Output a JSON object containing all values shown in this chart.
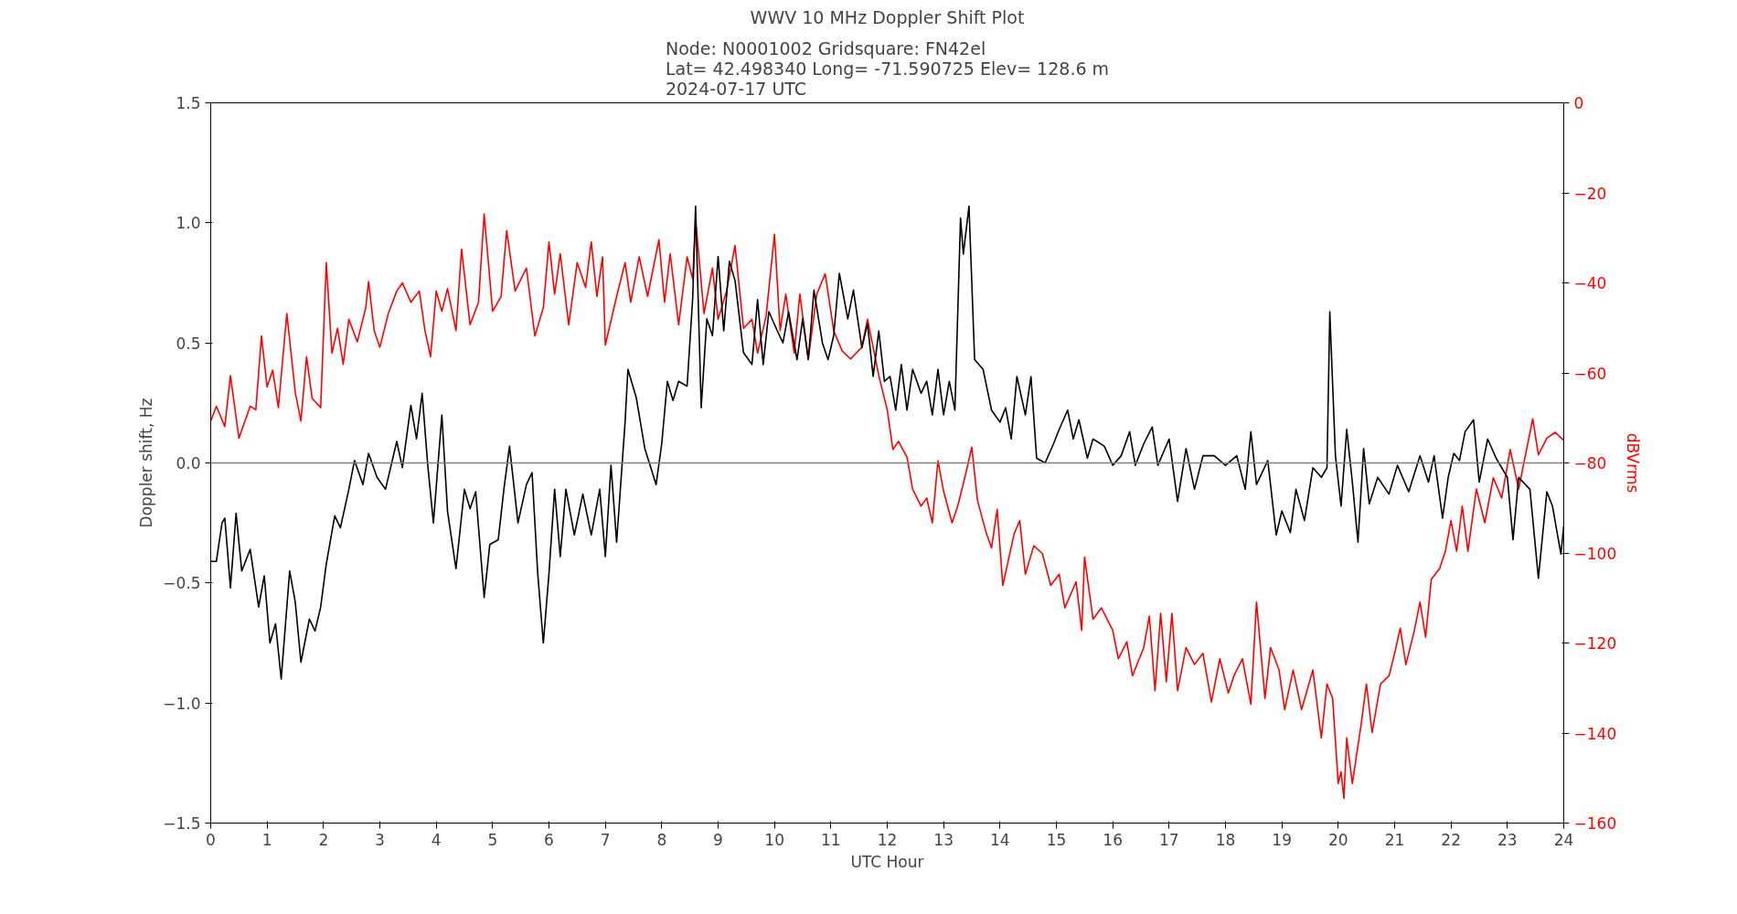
{
  "chart_data": {
    "type": "line",
    "title": "WWV 10 MHz Doppler Shift Plot",
    "subtitle": "Node: N0001002 Gridsquare: FN42el\nLat= 42.498340 Long= -71.590725 Elev= 128.6 m\n2024-07-17 UTC",
    "xlabel": "UTC Hour",
    "ylabel": "Doppler shift, Hz",
    "y2label": "dBVrms",
    "xlim": [
      0,
      24
    ],
    "xticks": [
      0,
      1,
      2,
      3,
      4,
      5,
      6,
      7,
      8,
      9,
      10,
      11,
      12,
      13,
      14,
      15,
      16,
      17,
      18,
      19,
      20,
      21,
      22,
      23,
      24
    ],
    "ylim": [
      -1.5,
      1.5
    ],
    "yticks": [
      {
        "value": -1.5,
        "label": "−1.5"
      },
      {
        "value": -1.0,
        "label": "−1.0"
      },
      {
        "value": -0.5,
        "label": "−0.5"
      },
      {
        "value": 0,
        "label": "0.0"
      },
      {
        "value": 0.5,
        "label": "0.5"
      },
      {
        "value": 1.0,
        "label": "1.0"
      },
      {
        "value": 1.5,
        "label": "1.5"
      }
    ],
    "y2lim": [
      -160,
      0
    ],
    "y2ticks": [
      {
        "value": -160,
        "label": "−160"
      },
      {
        "value": -140,
        "label": "−140"
      },
      {
        "value": -120,
        "label": "−120"
      },
      {
        "value": -100,
        "label": "−100"
      },
      {
        "value": -80,
        "label": "−80"
      },
      {
        "value": -60,
        "label": "−60"
      },
      {
        "value": -40,
        "label": "−40"
      },
      {
        "value": -20,
        "label": "−20"
      },
      {
        "value": 0,
        "label": "0"
      }
    ],
    "ref_lines": [
      {
        "axis": "y",
        "value": 0,
        "color": "#808080"
      }
    ],
    "grid": false,
    "series": [
      {
        "color": "#ff0000",
        "axis": "y2",
        "x": [
          0.0,
          0.1,
          0.25,
          0.35,
          0.5,
          0.7,
          0.8,
          0.9,
          1.0,
          1.1,
          1.2,
          1.35,
          1.5,
          1.6,
          1.7,
          1.8,
          1.95,
          2.05,
          2.15,
          2.25,
          2.35,
          2.45,
          2.6,
          2.75,
          2.8,
          2.9,
          3.0,
          3.15,
          3.3,
          3.4,
          3.55,
          3.7,
          3.8,
          3.9,
          4.0,
          4.1,
          4.2,
          4.35,
          4.45,
          4.6,
          4.75,
          4.85,
          5.0,
          5.15,
          5.25,
          5.4,
          5.6,
          5.75,
          5.9,
          6.0,
          6.1,
          6.2,
          6.35,
          6.5,
          6.65,
          6.75,
          6.85,
          6.95,
          7.0,
          7.2,
          7.35,
          7.45,
          7.6,
          7.75,
          7.95,
          8.05,
          8.15,
          8.3,
          8.45,
          8.55,
          8.6,
          8.75,
          8.9,
          9.0,
          9.15,
          9.3,
          9.45,
          9.6,
          9.7,
          9.85,
          10.0,
          10.1,
          10.2,
          10.35,
          10.45,
          10.6,
          10.75,
          10.9,
          11.05,
          11.2,
          11.35,
          11.55,
          11.65,
          11.85,
          12.0,
          12.1,
          12.2,
          12.35,
          12.45,
          12.6,
          12.7,
          12.8,
          12.9,
          13.0,
          13.15,
          13.25,
          13.4,
          13.5,
          13.6,
          13.75,
          13.85,
          13.95,
          14.05,
          14.25,
          14.35,
          14.45,
          14.6,
          14.75,
          14.9,
          15.05,
          15.15,
          15.35,
          15.45,
          15.5,
          15.65,
          15.8,
          16.0,
          16.1,
          16.25,
          16.35,
          16.55,
          16.65,
          16.75,
          16.85,
          16.95,
          17.05,
          17.15,
          17.3,
          17.45,
          17.6,
          17.75,
          17.9,
          18.05,
          18.15,
          18.3,
          18.45,
          18.55,
          18.7,
          18.8,
          18.95,
          19.05,
          19.2,
          19.35,
          19.55,
          19.7,
          19.8,
          19.9,
          20.0,
          20.05,
          20.1,
          20.15,
          20.25,
          20.4,
          20.5,
          20.6,
          20.75,
          20.9,
          21.0,
          21.1,
          21.2,
          21.35,
          21.45,
          21.55,
          21.65,
          21.8,
          21.9,
          22.0,
          22.1,
          22.2,
          22.3,
          22.45,
          22.6,
          22.75,
          22.9,
          23.05,
          23.2,
          23.3,
          23.45,
          23.55,
          23.7,
          23.85,
          24.0
        ],
        "values": [
          -70.7,
          -67.4,
          -71.9,
          -60.6,
          -74.5,
          -67.4,
          -68.2,
          -51.8,
          -63.1,
          -59.4,
          -67.7,
          -46.8,
          -64.4,
          -70.7,
          -56.4,
          -65.7,
          -67.7,
          -35.5,
          -55.6,
          -50.1,
          -58.1,
          -48.1,
          -53.1,
          -45.5,
          -39.7,
          -50.6,
          -54.3,
          -46.8,
          -41.8,
          -40.0,
          -44.3,
          -41.8,
          -50.6,
          -56.4,
          -41.8,
          -46.3,
          -41.3,
          -50.6,
          -32.5,
          -49.3,
          -44.3,
          -24.7,
          -46.3,
          -43.0,
          -28.4,
          -41.8,
          -36.7,
          -51.8,
          -45.5,
          -30.9,
          -42.5,
          -33.5,
          -49.3,
          -35.5,
          -41.0,
          -30.9,
          -43.0,
          -34.2,
          -53.8,
          -43.0,
          -35.5,
          -44.3,
          -34.2,
          -43.0,
          -30.4,
          -44.3,
          -33.5,
          -49.3,
          -34.2,
          -39.2,
          -25.9,
          -46.8,
          -36.7,
          -48.1,
          -41.8,
          -31.7,
          -50.1,
          -48.1,
          -55.6,
          -47.5,
          -29.2,
          -50.6,
          -42.5,
          -55.6,
          -42.5,
          -56.9,
          -42.5,
          -38.0,
          -50.6,
          -55.1,
          -56.9,
          -54.3,
          -48.1,
          -60.6,
          -68.2,
          -77.0,
          -75.2,
          -78.7,
          -85.8,
          -89.6,
          -87.8,
          -93.3,
          -79.5,
          -86.3,
          -93.3,
          -89.6,
          -82.0,
          -76.5,
          -88.3,
          -95.3,
          -98.9,
          -90.3,
          -107.2,
          -95.8,
          -92.8,
          -104.7,
          -98.4,
          -100.1,
          -107.2,
          -104.7,
          -112.2,
          -106.4,
          -117.2,
          -100.9,
          -114.7,
          -112.2,
          -117.2,
          -123.5,
          -119.7,
          -127.3,
          -121.0,
          -114.0,
          -130.6,
          -113.4,
          -128.6,
          -113.4,
          -130.6,
          -121.0,
          -124.8,
          -122.3,
          -133.1,
          -123.5,
          -131.1,
          -127.3,
          -123.5,
          -133.6,
          -110.9,
          -132.3,
          -121.0,
          -126.0,
          -134.8,
          -126.0,
          -134.8,
          -126.0,
          -141.1,
          -129.1,
          -132.3,
          -151.2,
          -148.6,
          -154.5,
          -141.1,
          -151.2,
          -138.6,
          -129.1,
          -139.9,
          -129.1,
          -127.3,
          -122.3,
          -116.7,
          -124.8,
          -117.2,
          -110.9,
          -118.7,
          -105.9,
          -103.4,
          -99.6,
          -92.8,
          -99.6,
          -89.6,
          -99.6,
          -85.8,
          -93.3,
          -83.3,
          -87.8,
          -77.0,
          -85.8,
          -79.5,
          -70.2,
          -78.2,
          -74.5,
          -73.2,
          -75.0
        ]
      },
      {
        "color": "#000000",
        "x": [
          0.0,
          0.1,
          0.2,
          0.25,
          0.35,
          0.45,
          0.55,
          0.7,
          0.85,
          0.95,
          1.05,
          1.15,
          1.25,
          1.4,
          1.5,
          1.6,
          1.75,
          1.85,
          1.95,
          2.05,
          2.2,
          2.3,
          2.45,
          2.55,
          2.7,
          2.8,
          2.95,
          3.1,
          3.3,
          3.4,
          3.55,
          3.65,
          3.75,
          3.85,
          3.95,
          4.1,
          4.2,
          4.35,
          4.5,
          4.6,
          4.7,
          4.85,
          4.95,
          5.1,
          5.2,
          5.3,
          5.45,
          5.6,
          5.7,
          5.8,
          5.9,
          6.0,
          6.1,
          6.2,
          6.3,
          6.45,
          6.6,
          6.75,
          6.9,
          7.0,
          7.1,
          7.2,
          7.35,
          7.4,
          7.55,
          7.7,
          7.9,
          8.0,
          8.1,
          8.2,
          8.3,
          8.45,
          8.55,
          8.6,
          8.7,
          8.8,
          8.9,
          9.0,
          9.1,
          9.2,
          9.3,
          9.45,
          9.6,
          9.7,
          9.8,
          9.9,
          10.05,
          10.15,
          10.25,
          10.4,
          10.5,
          10.6,
          10.7,
          10.85,
          10.95,
          11.05,
          11.15,
          11.3,
          11.4,
          11.55,
          11.65,
          11.75,
          11.85,
          11.95,
          12.05,
          12.15,
          12.25,
          12.35,
          12.45,
          12.6,
          12.7,
          12.8,
          12.9,
          13.0,
          13.1,
          13.2,
          13.3,
          13.35,
          13.45,
          13.55,
          13.7,
          13.85,
          14.0,
          14.1,
          14.2,
          14.3,
          14.45,
          14.55,
          14.65,
          14.8,
          14.95,
          15.05,
          15.2,
          15.3,
          15.4,
          15.55,
          15.65,
          15.85,
          16.0,
          16.15,
          16.3,
          16.4,
          16.55,
          16.7,
          16.8,
          17.0,
          17.15,
          17.3,
          17.45,
          17.6,
          17.8,
          18.0,
          18.2,
          18.35,
          18.45,
          18.55,
          18.75,
          18.9,
          19.0,
          19.15,
          19.25,
          19.4,
          19.55,
          19.7,
          19.8,
          19.85,
          19.95,
          20.05,
          20.15,
          20.25,
          20.35,
          20.45,
          20.55,
          20.7,
          20.9,
          21.05,
          21.25,
          21.45,
          21.6,
          21.7,
          21.85,
          21.95,
          22.05,
          22.15,
          22.25,
          22.4,
          22.5,
          22.65,
          22.8,
          23.0,
          23.1,
          23.2,
          23.4,
          23.55,
          23.7,
          23.8,
          23.95,
          24.0
        ],
        "values": [
          -0.41,
          -0.41,
          -0.25,
          -0.23,
          -0.52,
          -0.21,
          -0.45,
          -0.36,
          -0.6,
          -0.47,
          -0.75,
          -0.67,
          -0.9,
          -0.45,
          -0.58,
          -0.83,
          -0.65,
          -0.7,
          -0.6,
          -0.42,
          -0.22,
          -0.27,
          -0.11,
          0.01,
          -0.09,
          0.04,
          -0.06,
          -0.11,
          0.09,
          -0.02,
          0.24,
          0.1,
          0.29,
          -0.01,
          -0.25,
          0.2,
          -0.2,
          -0.44,
          -0.11,
          -0.19,
          -0.12,
          -0.56,
          -0.34,
          -0.32,
          -0.11,
          0.07,
          -0.25,
          -0.09,
          -0.04,
          -0.46,
          -0.75,
          -0.46,
          -0.11,
          -0.39,
          -0.11,
          -0.3,
          -0.13,
          -0.3,
          -0.11,
          -0.39,
          -0.01,
          -0.33,
          0.17,
          0.39,
          0.27,
          0.06,
          -0.09,
          0.08,
          0.34,
          0.26,
          0.34,
          0.32,
          0.69,
          1.07,
          0.23,
          0.6,
          0.53,
          0.86,
          0.55,
          0.84,
          0.76,
          0.46,
          0.41,
          0.68,
          0.41,
          0.63,
          0.55,
          0.5,
          0.63,
          0.43,
          0.6,
          0.43,
          0.72,
          0.5,
          0.43,
          0.53,
          0.79,
          0.6,
          0.72,
          0.48,
          0.58,
          0.36,
          0.55,
          0.34,
          0.36,
          0.22,
          0.41,
          0.22,
          0.39,
          0.29,
          0.34,
          0.2,
          0.39,
          0.2,
          0.34,
          0.22,
          1.02,
          0.87,
          1.07,
          0.43,
          0.39,
          0.22,
          0.17,
          0.23,
          0.1,
          0.36,
          0.2,
          0.36,
          0.02,
          0.0,
          0.08,
          0.14,
          0.22,
          0.1,
          0.18,
          0.02,
          0.1,
          0.07,
          -0.01,
          0.03,
          0.13,
          -0.01,
          0.08,
          0.15,
          -0.01,
          0.1,
          -0.16,
          0.06,
          -0.11,
          0.03,
          0.03,
          -0.01,
          0.03,
          -0.11,
          0.13,
          -0.09,
          0.01,
          -0.3,
          -0.2,
          -0.29,
          -0.11,
          -0.24,
          -0.02,
          -0.06,
          -0.02,
          0.63,
          0.03,
          -0.18,
          0.14,
          -0.08,
          -0.33,
          0.06,
          -0.17,
          -0.06,
          -0.13,
          -0.01,
          -0.12,
          0.03,
          -0.08,
          0.03,
          -0.23,
          -0.06,
          0.04,
          0.01,
          0.13,
          0.18,
          -0.08,
          0.1,
          0.02,
          -0.06,
          -0.32,
          -0.06,
          -0.11,
          -0.48,
          -0.12,
          -0.18,
          -0.38,
          -0.26
        ]
      }
    ]
  }
}
